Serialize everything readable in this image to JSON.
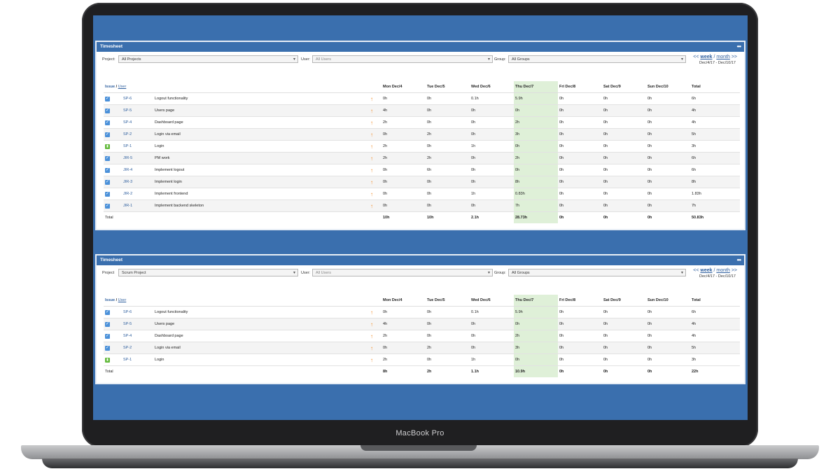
{
  "device": {
    "brand_label": "MacBook Pro"
  },
  "colors": {
    "screen_bg": "#3a6fae",
    "today_col": "#dff0d8",
    "link": "#2f5f9e",
    "priority_arrow": "#f08a24"
  },
  "panels": [
    {
      "title": "Timesheet",
      "menu_icon": "more-dots-icon",
      "filters": {
        "project_label": "Project:",
        "project_value": "All Projects",
        "user_label": "User:",
        "user_value": "All Users",
        "group_label": "Group:",
        "group_value": "All Groups"
      },
      "nav": {
        "prev": "<<",
        "week": "week",
        "sep": "/",
        "month": "month",
        "next": ">>",
        "range": "Dec/4/17 - Dec/10/17"
      },
      "header": {
        "issue": "Issue",
        "slash": "/",
        "user": "User",
        "days": [
          "Mon Dec/4",
          "Tue Dec/5",
          "Wed Dec/6",
          "Thu Dec/7",
          "Fri Dec/8",
          "Sat Dec/9",
          "Sun Dec/10"
        ],
        "total": "Total"
      },
      "rows": [
        {
          "type": "task",
          "key": "SP-6",
          "summary": "Logout functionality",
          "hours": [
            "0h",
            "0h",
            "0.1h",
            "5.9h",
            "0h",
            "0h",
            "0h"
          ],
          "total": "6h"
        },
        {
          "type": "task",
          "key": "SP-5",
          "summary": "Users page",
          "hours": [
            "4h",
            "0h",
            "0h",
            "0h",
            "0h",
            "0h",
            "0h"
          ],
          "total": "4h"
        },
        {
          "type": "task",
          "key": "SP-4",
          "summary": "Dashboard page",
          "hours": [
            "2h",
            "0h",
            "0h",
            "2h",
            "0h",
            "0h",
            "0h"
          ],
          "total": "4h"
        },
        {
          "type": "task",
          "key": "SP-2",
          "summary": "Login via email",
          "hours": [
            "0h",
            "2h",
            "0h",
            "3h",
            "0h",
            "0h",
            "0h"
          ],
          "total": "5h"
        },
        {
          "type": "story",
          "key": "SP-1",
          "summary": "Login",
          "hours": [
            "2h",
            "0h",
            "1h",
            "0h",
            "0h",
            "0h",
            "0h"
          ],
          "total": "3h"
        },
        {
          "type": "task",
          "key": "JIR-5",
          "summary": "PM work",
          "hours": [
            "2h",
            "2h",
            "0h",
            "2h",
            "0h",
            "0h",
            "0h"
          ],
          "total": "6h"
        },
        {
          "type": "task",
          "key": "JIR-4",
          "summary": "Implement logout",
          "hours": [
            "0h",
            "6h",
            "0h",
            "0h",
            "0h",
            "0h",
            "0h"
          ],
          "total": "6h"
        },
        {
          "type": "task",
          "key": "JIR-3",
          "summary": "Implement login",
          "hours": [
            "0h",
            "0h",
            "0h",
            "8h",
            "0h",
            "0h",
            "0h"
          ],
          "total": "8h"
        },
        {
          "type": "task",
          "key": "JIR-2",
          "summary": "Implement frontend",
          "hours": [
            "0h",
            "0h",
            "1h",
            "0.83h",
            "0h",
            "0h",
            "0h"
          ],
          "total": "1.83h"
        },
        {
          "type": "task",
          "key": "JIR-1",
          "summary": "Implement backend skeleton",
          "hours": [
            "0h",
            "0h",
            "0h",
            "7h",
            "0h",
            "0h",
            "0h"
          ],
          "total": "7h"
        }
      ],
      "totals": {
        "label": "Total",
        "hours": [
          "10h",
          "10h",
          "2.1h",
          "28.73h",
          "0h",
          "0h",
          "0h"
        ],
        "total": "50.83h"
      }
    },
    {
      "title": "Timesheet",
      "menu_icon": "more-dots-icon",
      "filters": {
        "project_label": "Project",
        "project_value": "Scrum Project",
        "user_label": "User:",
        "user_value": "All Users",
        "group_label": "Group:",
        "group_value": "All Groups"
      },
      "nav": {
        "prev": "<<",
        "week": "week",
        "sep": "/",
        "month": "month",
        "next": ">>",
        "range": "Dec/4/17 - Dec/10/17"
      },
      "header": {
        "issue": "Issue",
        "slash": "/",
        "user": "User",
        "days": [
          "Mon Dec/4",
          "Tue Dec/5",
          "Wed Dec/6",
          "Thu Dec/7",
          "Fri Dec/8",
          "Sat Dec/9",
          "Sun Dec/10"
        ],
        "total": "Total"
      },
      "rows": [
        {
          "type": "task",
          "key": "SP-6",
          "summary": "Logout functionality",
          "hours": [
            "0h",
            "0h",
            "0.1h",
            "5.9h",
            "0h",
            "0h",
            "0h"
          ],
          "total": "6h"
        },
        {
          "type": "task",
          "key": "SP-5",
          "summary": "Users page",
          "hours": [
            "4h",
            "0h",
            "0h",
            "0h",
            "0h",
            "0h",
            "0h"
          ],
          "total": "4h"
        },
        {
          "type": "task",
          "key": "SP-4",
          "summary": "Dashboard page",
          "hours": [
            "2h",
            "0h",
            "0h",
            "2h",
            "0h",
            "0h",
            "0h"
          ],
          "total": "4h"
        },
        {
          "type": "task",
          "key": "SP-2",
          "summary": "Login via email",
          "hours": [
            "0h",
            "2h",
            "0h",
            "3h",
            "0h",
            "0h",
            "0h"
          ],
          "total": "5h"
        },
        {
          "type": "story",
          "key": "SP-1",
          "summary": "Login",
          "hours": [
            "2h",
            "0h",
            "1h",
            "0h",
            "0h",
            "0h",
            "0h"
          ],
          "total": "3h"
        }
      ],
      "totals": {
        "label": "Total",
        "hours": [
          "8h",
          "2h",
          "1.1h",
          "10.9h",
          "0h",
          "0h",
          "0h"
        ],
        "total": "22h"
      }
    }
  ]
}
